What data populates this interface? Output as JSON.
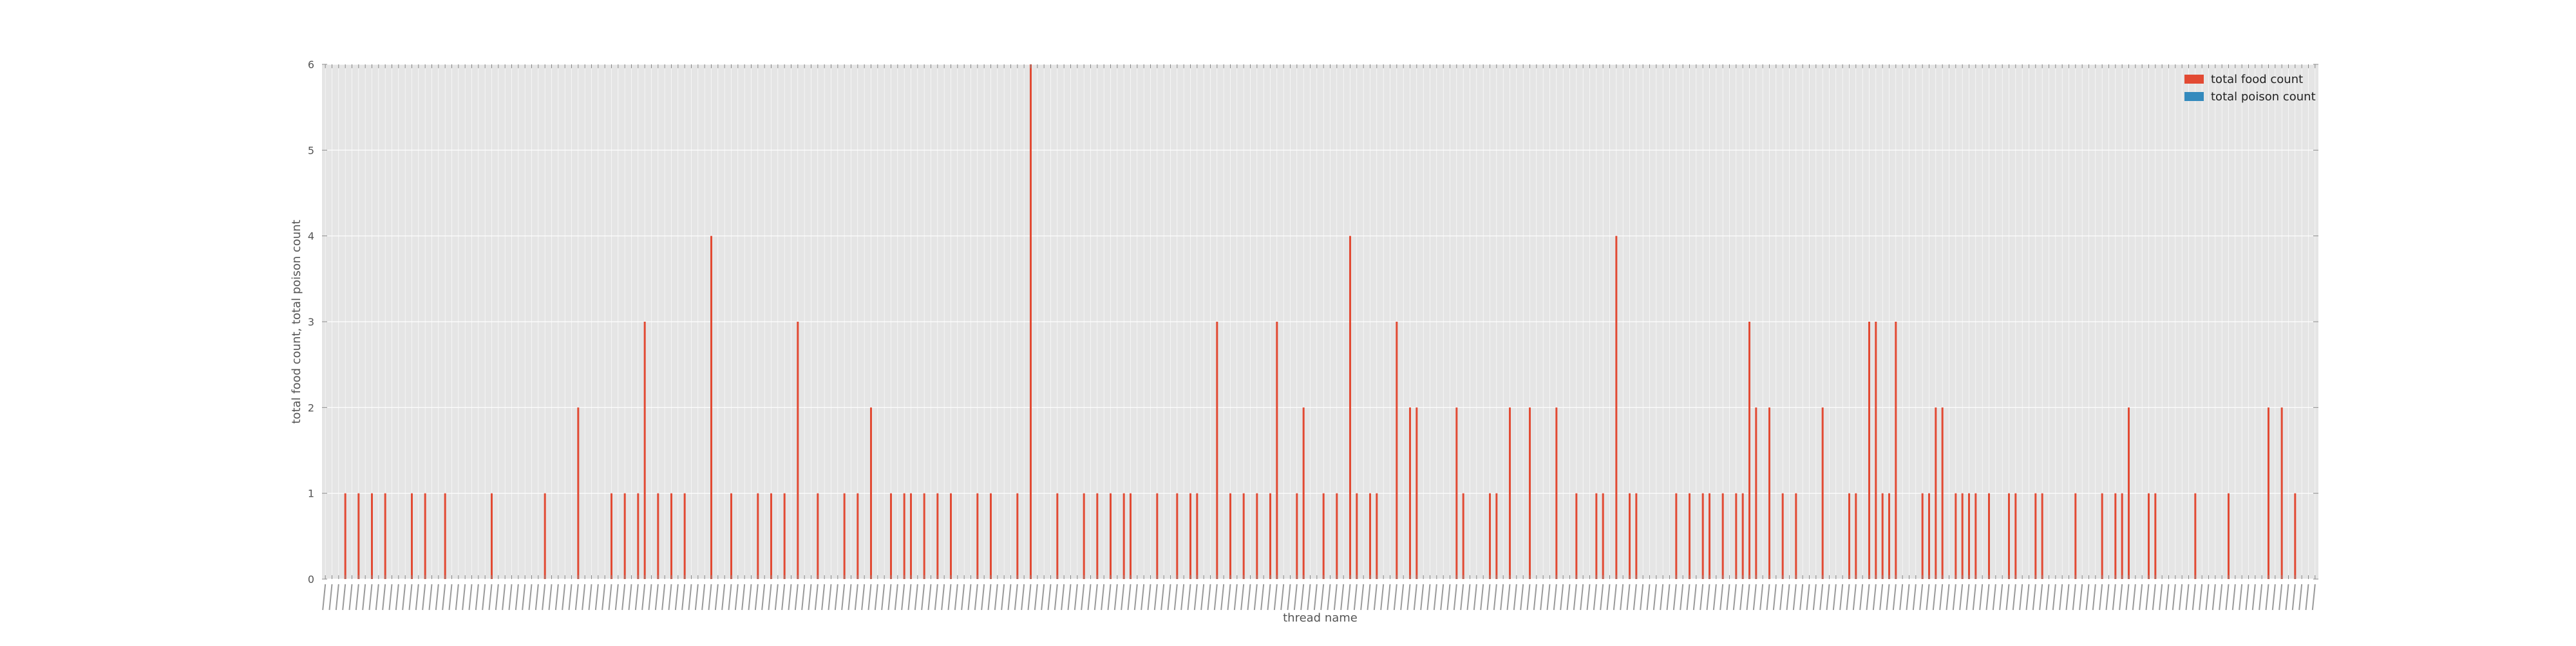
{
  "chart_data": {
    "type": "bar",
    "xlabel": "thread name",
    "ylabel": "total food count, total poison count",
    "ylim": [
      0,
      6
    ],
    "yticks": [
      0,
      1,
      2,
      3,
      4,
      5,
      6
    ],
    "grid": true,
    "legend_position": "top-right",
    "bar_count": 300,
    "colors": {
      "background": "#e5e5e5",
      "grid": "#ffffff",
      "food": "#e24a33",
      "poison": "#348abd"
    },
    "series": [
      {
        "name": "total food count",
        "color": "#e24a33",
        "points": [
          {
            "i": 3,
            "v": 1
          },
          {
            "i": 5,
            "v": 1
          },
          {
            "i": 7,
            "v": 1
          },
          {
            "i": 9,
            "v": 1
          },
          {
            "i": 13,
            "v": 1
          },
          {
            "i": 15,
            "v": 1
          },
          {
            "i": 18,
            "v": 1
          },
          {
            "i": 25,
            "v": 1
          },
          {
            "i": 33,
            "v": 1
          },
          {
            "i": 38,
            "v": 2
          },
          {
            "i": 43,
            "v": 1
          },
          {
            "i": 45,
            "v": 1
          },
          {
            "i": 47,
            "v": 1
          },
          {
            "i": 48,
            "v": 3
          },
          {
            "i": 50,
            "v": 1
          },
          {
            "i": 52,
            "v": 1
          },
          {
            "i": 54,
            "v": 1
          },
          {
            "i": 58,
            "v": 4
          },
          {
            "i": 61,
            "v": 1
          },
          {
            "i": 65,
            "v": 1
          },
          {
            "i": 67,
            "v": 1
          },
          {
            "i": 69,
            "v": 1
          },
          {
            "i": 71,
            "v": 3
          },
          {
            "i": 74,
            "v": 1
          },
          {
            "i": 78,
            "v": 1
          },
          {
            "i": 80,
            "v": 1
          },
          {
            "i": 82,
            "v": 2
          },
          {
            "i": 85,
            "v": 1
          },
          {
            "i": 87,
            "v": 1
          },
          {
            "i": 88,
            "v": 1
          },
          {
            "i": 90,
            "v": 1
          },
          {
            "i": 92,
            "v": 1
          },
          {
            "i": 94,
            "v": 1
          },
          {
            "i": 98,
            "v": 1
          },
          {
            "i": 100,
            "v": 1
          },
          {
            "i": 104,
            "v": 1
          },
          {
            "i": 106,
            "v": 6
          },
          {
            "i": 110,
            "v": 1
          },
          {
            "i": 114,
            "v": 1
          },
          {
            "i": 116,
            "v": 1
          },
          {
            "i": 118,
            "v": 1
          },
          {
            "i": 120,
            "v": 1
          },
          {
            "i": 121,
            "v": 1
          },
          {
            "i": 125,
            "v": 1
          },
          {
            "i": 128,
            "v": 1
          },
          {
            "i": 130,
            "v": 1
          },
          {
            "i": 131,
            "v": 1
          },
          {
            "i": 134,
            "v": 3
          },
          {
            "i": 136,
            "v": 1
          },
          {
            "i": 138,
            "v": 1
          },
          {
            "i": 140,
            "v": 1
          },
          {
            "i": 142,
            "v": 1
          },
          {
            "i": 143,
            "v": 3
          },
          {
            "i": 146,
            "v": 1
          },
          {
            "i": 147,
            "v": 2
          },
          {
            "i": 150,
            "v": 1
          },
          {
            "i": 152,
            "v": 1
          },
          {
            "i": 154,
            "v": 4
          },
          {
            "i": 155,
            "v": 1
          },
          {
            "i": 157,
            "v": 1
          },
          {
            "i": 158,
            "v": 1
          },
          {
            "i": 161,
            "v": 3
          },
          {
            "i": 163,
            "v": 2
          },
          {
            "i": 164,
            "v": 2
          },
          {
            "i": 170,
            "v": 2
          },
          {
            "i": 171,
            "v": 1
          },
          {
            "i": 175,
            "v": 1
          },
          {
            "i": 176,
            "v": 1
          },
          {
            "i": 178,
            "v": 2
          },
          {
            "i": 181,
            "v": 2
          },
          {
            "i": 185,
            "v": 2
          },
          {
            "i": 188,
            "v": 1
          },
          {
            "i": 191,
            "v": 1
          },
          {
            "i": 192,
            "v": 1
          },
          {
            "i": 194,
            "v": 4
          },
          {
            "i": 196,
            "v": 1
          },
          {
            "i": 197,
            "v": 1
          },
          {
            "i": 203,
            "v": 1
          },
          {
            "i": 205,
            "v": 1
          },
          {
            "i": 207,
            "v": 1
          },
          {
            "i": 208,
            "v": 1
          },
          {
            "i": 210,
            "v": 1
          },
          {
            "i": 212,
            "v": 1
          },
          {
            "i": 213,
            "v": 1
          },
          {
            "i": 214,
            "v": 3
          },
          {
            "i": 215,
            "v": 2
          },
          {
            "i": 217,
            "v": 2
          },
          {
            "i": 219,
            "v": 1
          },
          {
            "i": 221,
            "v": 1
          },
          {
            "i": 225,
            "v": 2
          },
          {
            "i": 229,
            "v": 1
          },
          {
            "i": 230,
            "v": 1
          },
          {
            "i": 232,
            "v": 3
          },
          {
            "i": 233,
            "v": 3
          },
          {
            "i": 234,
            "v": 1
          },
          {
            "i": 235,
            "v": 1
          },
          {
            "i": 236,
            "v": 3
          },
          {
            "i": 240,
            "v": 1
          },
          {
            "i": 241,
            "v": 1
          },
          {
            "i": 242,
            "v": 2
          },
          {
            "i": 243,
            "v": 2
          },
          {
            "i": 245,
            "v": 1
          },
          {
            "i": 246,
            "v": 1
          },
          {
            "i": 247,
            "v": 1
          },
          {
            "i": 248,
            "v": 1
          },
          {
            "i": 250,
            "v": 1
          },
          {
            "i": 253,
            "v": 1
          },
          {
            "i": 254,
            "v": 1
          },
          {
            "i": 257,
            "v": 1
          },
          {
            "i": 258,
            "v": 1
          },
          {
            "i": 263,
            "v": 1
          },
          {
            "i": 267,
            "v": 1
          },
          {
            "i": 269,
            "v": 1
          },
          {
            "i": 270,
            "v": 1
          },
          {
            "i": 271,
            "v": 2
          },
          {
            "i": 274,
            "v": 1
          },
          {
            "i": 275,
            "v": 1
          },
          {
            "i": 281,
            "v": 1
          },
          {
            "i": 286,
            "v": 1
          },
          {
            "i": 292,
            "v": 2
          },
          {
            "i": 294,
            "v": 2
          },
          {
            "i": 296,
            "v": 1
          }
        ]
      },
      {
        "name": "total poison count",
        "color": "#348abd",
        "points": []
      }
    ]
  }
}
